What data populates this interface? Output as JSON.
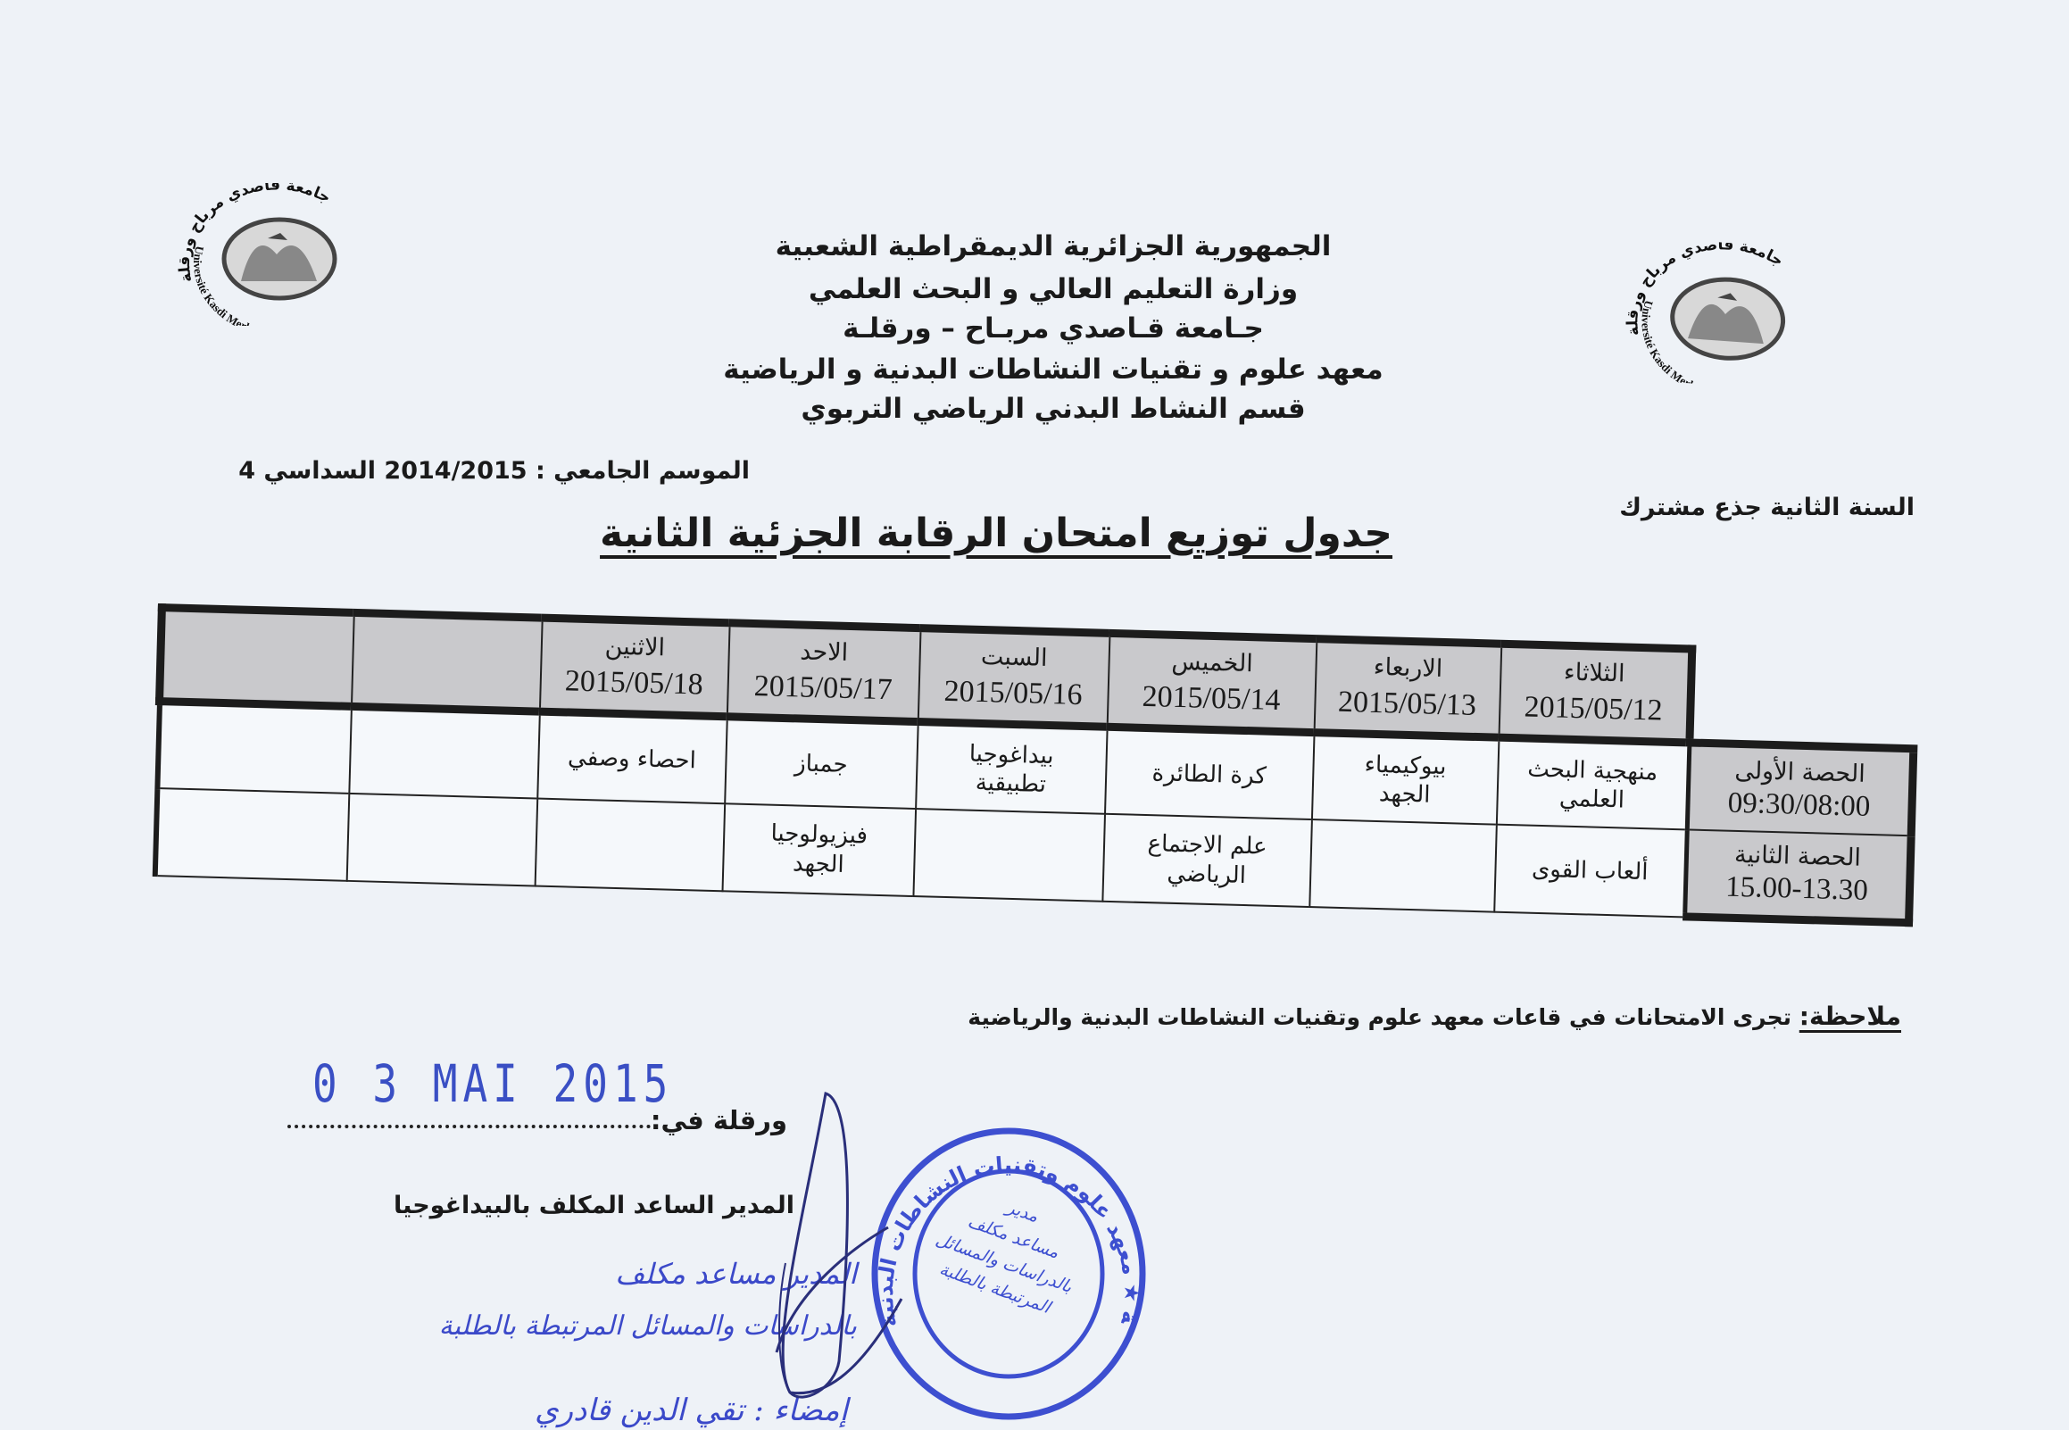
{
  "logos": {
    "arabic_ring": "جامعة قاصدي مرباح ورقلة",
    "latin_ring": "Université Kasdi Merbah Ouargla"
  },
  "header": {
    "lines": [
      "الجمهورية الجزائرية الديمقراطية الشعبية",
      "وزارة التعليم العالي و البحث العلمي",
      "جـامعة قـاصدي مربـاح – ورقلـة",
      "معهد علوم و تقنيات النشاطات البدنية و الرياضية",
      "قسم النشاط البدني الرياضي التربوي"
    ]
  },
  "season": "الموسم الجامعي : 2014/2015 السداسي 4",
  "level": "السنة الثانية  جذع مشترك",
  "title": "جدول توزيع امتحان الرقابة الجزئية الثانية",
  "table": {
    "days": [
      {
        "day": "الثلاثاء",
        "date": "2015/05/12"
      },
      {
        "day": "الاربعاء",
        "date": "2015/05/13"
      },
      {
        "day": "الخميس",
        "date": "2015/05/14"
      },
      {
        "day": "السبت",
        "date": "2015/05/16"
      },
      {
        "day": "الاحد",
        "date": "2015/05/17"
      },
      {
        "day": "الاثنين",
        "date": "2015/05/18"
      },
      {
        "day": "",
        "date": ""
      },
      {
        "day": "",
        "date": ""
      }
    ],
    "periods": [
      {
        "label": "الحصة الأولى",
        "time": "09:30/08:00",
        "cells": [
          "منهجية البحث\nالعلمي",
          "بيوكيمياء\nالجهد",
          "كرة الطائرة",
          "بيداغوجيا\nتطبيقية",
          "جمباز",
          "احصاء وصفي",
          "",
          ""
        ]
      },
      {
        "label": "الحصة الثانية",
        "time": "15.00-13.30",
        "cells": [
          "ألعاب القوى",
          "",
          "علم الاجتماع\nالرياضي",
          "",
          "فيزيولوجيا\nالجهد",
          "",
          "",
          ""
        ]
      }
    ]
  },
  "note": {
    "label": "ملاحظة:",
    "text": " تجرى الامتحانات في قاعات معهد علوم وتقنيات النشاطات البدنية والرياضية"
  },
  "date_stamp": "0 3 MAI 2015",
  "place_label": "ورقلة في:",
  "director": "المدير الساعد المكلف بالبيداغوجيا",
  "handwritten": {
    "line1": "المدير مساعد مكلف",
    "line2": "بالدراسات والمسائل المرتبطة بالطلبة",
    "line3": "إمضاء : تقي الدين قادري"
  },
  "stamp": {
    "ring": "جامعة ورقلة ★ معهد علوم وتقنيات النشاطات البدنية",
    "inner": "مدير\nمساعد مكلف\nبالدراسات والمسائل\nالمرتبطة بالطلبة"
  },
  "colors": {
    "paper": "#eef2f7",
    "header_fill": "#c9c9cc",
    "ink_blue": "#3b49c9"
  }
}
